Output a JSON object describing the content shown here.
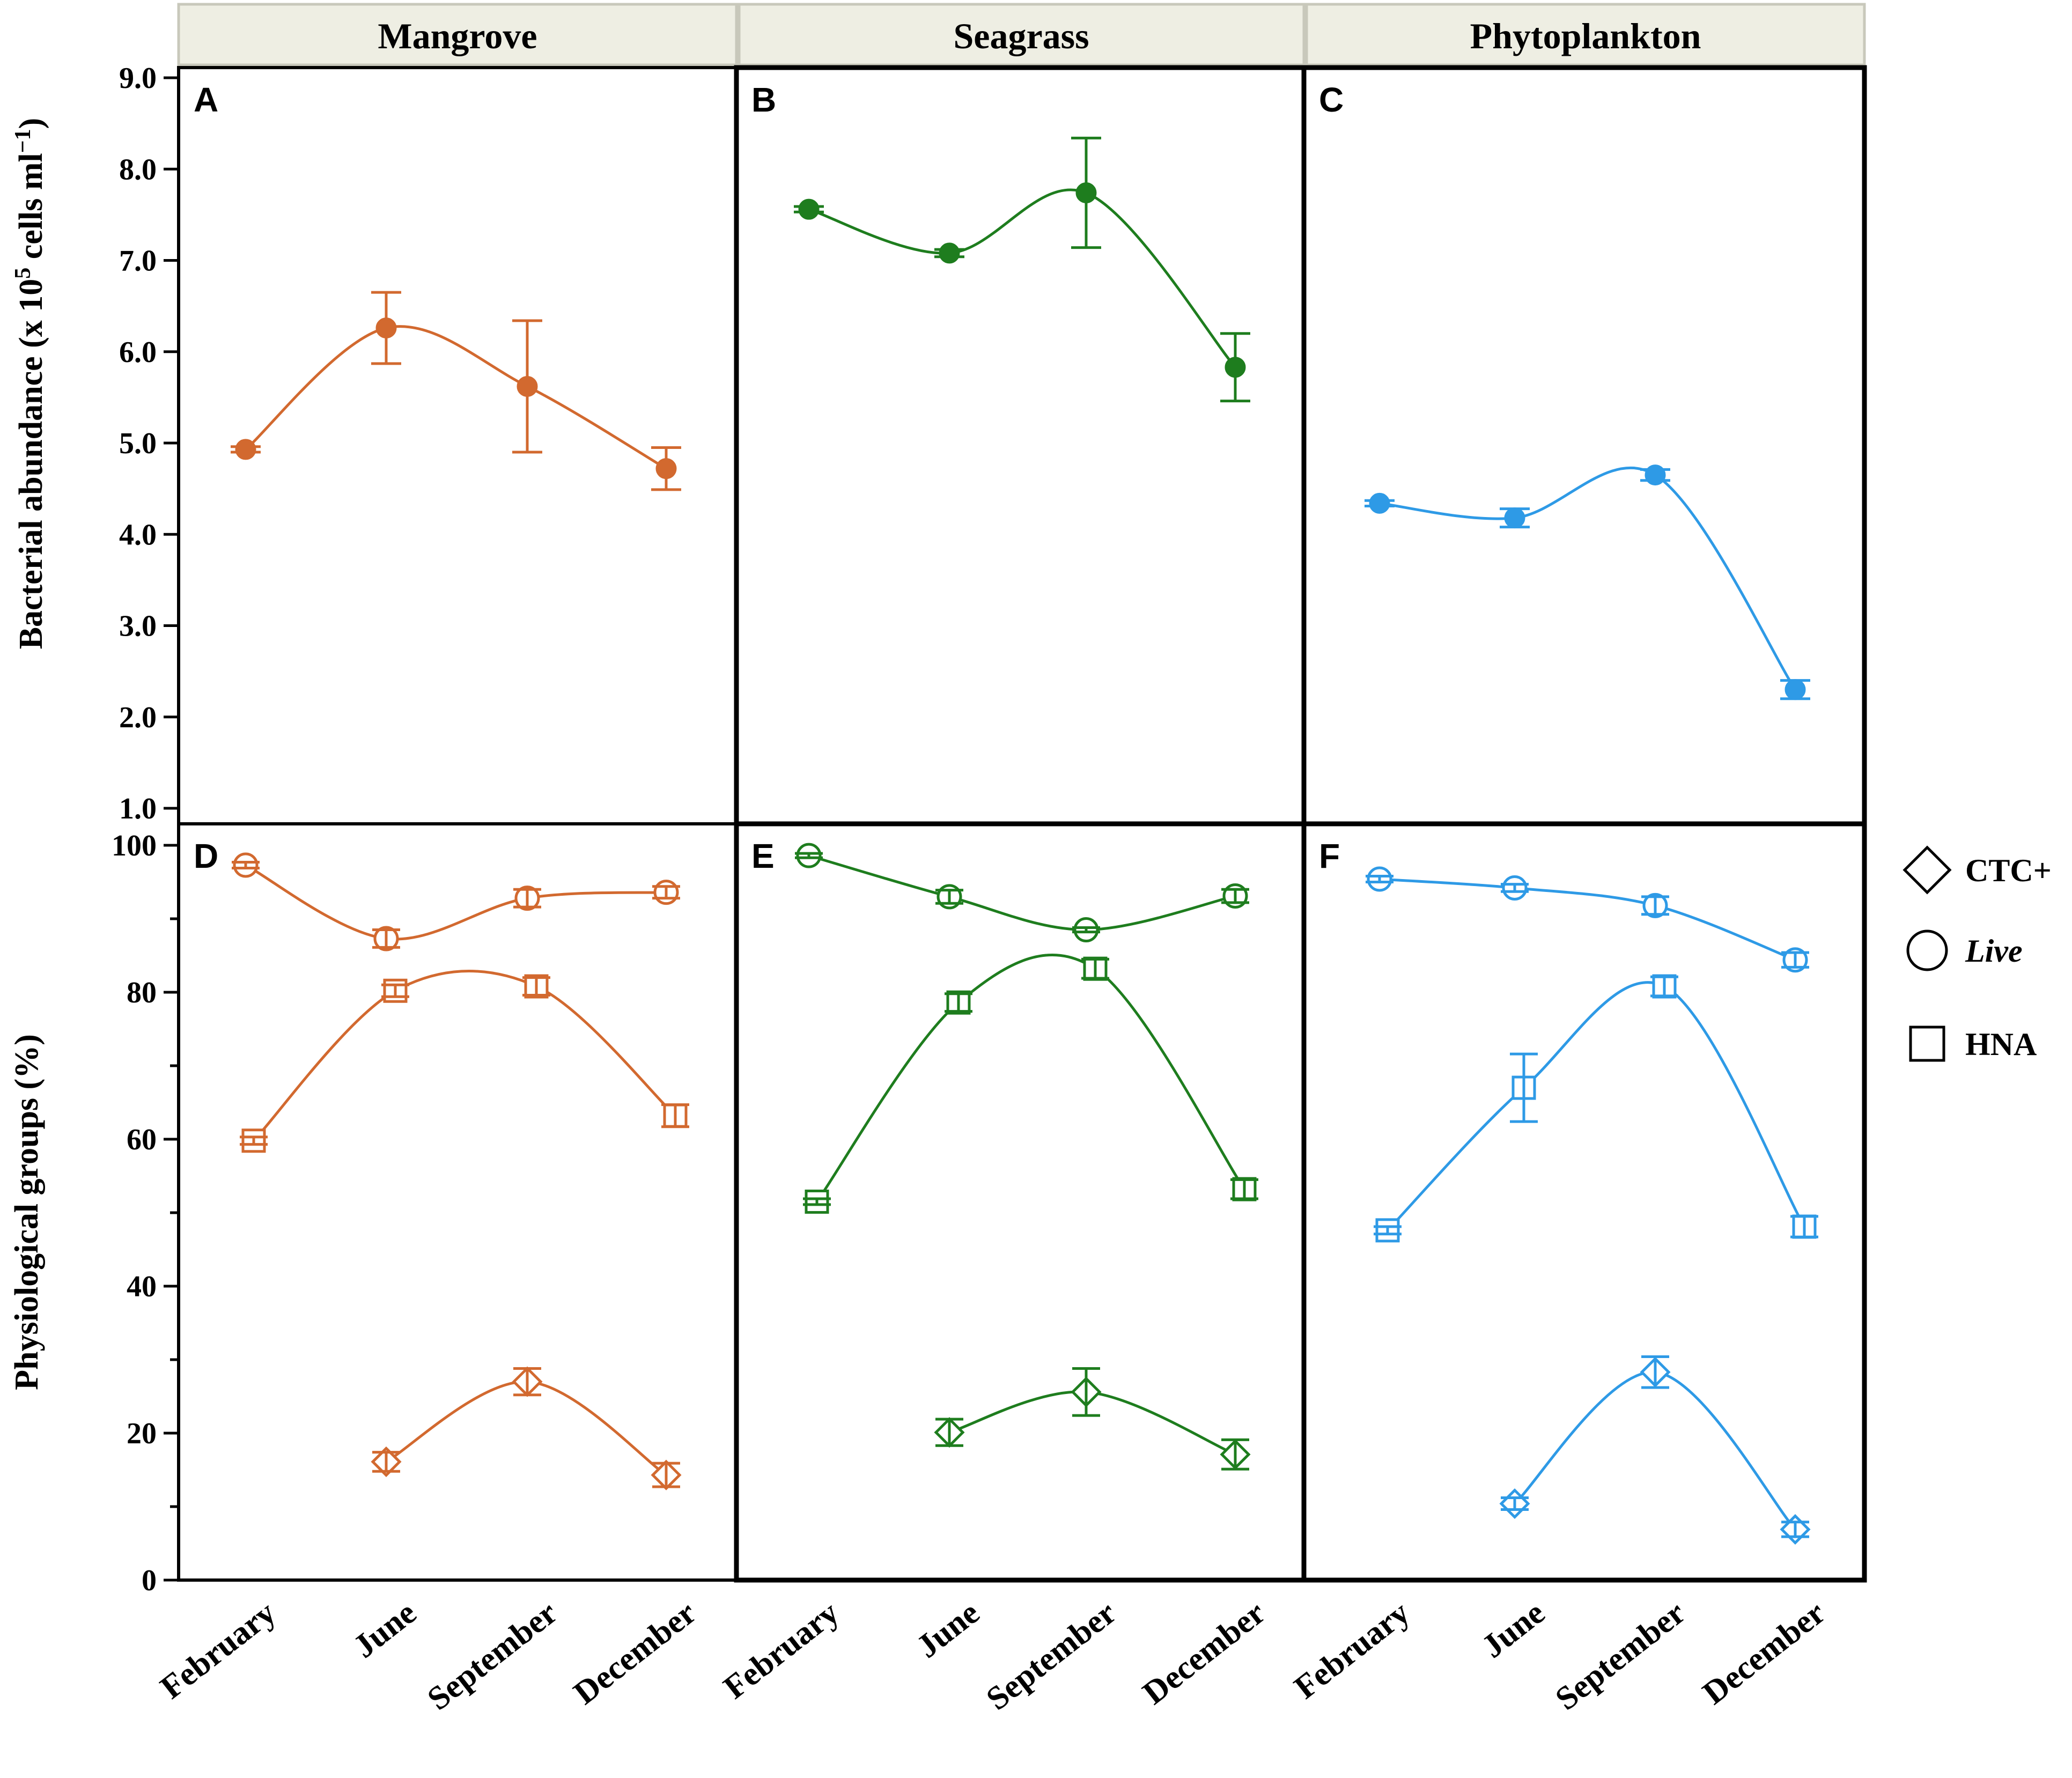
{
  "chart_data": {
    "type": "line",
    "months": [
      "February",
      "June",
      "September",
      "December"
    ],
    "colors": {
      "Mangrove": "#d2692f",
      "Seagrass": "#1e7d1e",
      "Phytoplankton": "#2e9ae6"
    },
    "strip_labels": [
      "Mangrove",
      "Seagrass",
      "Phytoplankton"
    ],
    "top_row": {
      "ylabel": "Bacterial abundance (x 10",
      "ylabel_sup5": "5",
      "ylabel_mid": " cells ml",
      "ylabel_sup": "−1",
      "ylabel_end": ")",
      "ylim": [
        1.0,
        9.0
      ],
      "yticks": [
        "1.0",
        "2.0",
        "3.0",
        "4.0",
        "5.0",
        "6.0",
        "7.0",
        "8.0",
        "9.0"
      ],
      "panels": [
        {
          "letter": "A",
          "habitat": "Mangrove",
          "values": [
            4.93,
            6.26,
            5.62,
            4.72
          ],
          "errors": [
            0.03,
            0.39,
            0.72,
            0.23
          ]
        },
        {
          "letter": "B",
          "habitat": "Seagrass",
          "values": [
            7.56,
            7.08,
            7.74,
            5.83
          ],
          "errors": [
            0.03,
            0.04,
            0.6,
            0.37
          ]
        },
        {
          "letter": "C",
          "habitat": "Phytoplankton",
          "values": [
            4.34,
            4.18,
            4.65,
            2.3
          ],
          "errors": [
            0.03,
            0.1,
            0.06,
            0.1
          ]
        }
      ]
    },
    "bottom_row": {
      "ylabel": "Physiological groups  (%)",
      "ylim": [
        0,
        100
      ],
      "yticks": [
        "0",
        "20",
        "40",
        "60",
        "80",
        "100"
      ],
      "panels": [
        {
          "letter": "D",
          "habitat": "Mangrove",
          "series": [
            {
              "name": "Live",
              "marker": "circle",
              "values": [
                97.3,
                87.3,
                92.8,
                93.6
              ],
              "errors": [
                0.4,
                1.2,
                1.2,
                0.8
              ]
            },
            {
              "name": "HNA",
              "marker": "square",
              "values": [
                59.8,
                80.2,
                80.8,
                63.2
              ],
              "errors": [
                0.5,
                0.8,
                1.2,
                1.5
              ]
            },
            {
              "name": "CTC+",
              "marker": "diamond",
              "values": [
                null,
                16.1,
                27.0,
                14.3
              ],
              "errors": [
                null,
                1.3,
                1.8,
                1.6
              ]
            }
          ]
        },
        {
          "letter": "E",
          "habitat": "Seagrass",
          "series": [
            {
              "name": "Live",
              "marker": "circle",
              "values": [
                98.6,
                93.0,
                88.5,
                93.1
              ],
              "errors": [
                0.3,
                0.9,
                0.3,
                0.9
              ]
            },
            {
              "name": "HNA",
              "marker": "square",
              "values": [
                51.5,
                78.6,
                83.2,
                53.2
              ],
              "errors": [
                0.4,
                1.2,
                1.3,
                1.3
              ]
            },
            {
              "name": "CTC+",
              "marker": "diamond",
              "values": [
                null,
                20.1,
                25.6,
                17.1
              ],
              "errors": [
                null,
                1.8,
                3.2,
                2.0
              ]
            }
          ]
        },
        {
          "letter": "F",
          "habitat": "Phytoplankton",
          "series": [
            {
              "name": "Live",
              "marker": "circle",
              "values": [
                95.4,
                94.2,
                91.8,
                84.4
              ],
              "errors": [
                0.4,
                0.5,
                1.2,
                1.0
              ]
            },
            {
              "name": "HNA",
              "marker": "square",
              "values": [
                47.6,
                67.0,
                80.8,
                48.1
              ],
              "errors": [
                0.5,
                4.6,
                1.3,
                1.4
              ]
            },
            {
              "name": "CTC+",
              "marker": "diamond",
              "values": [
                null,
                10.4,
                28.3,
                6.9
              ],
              "errors": [
                null,
                0.8,
                2.1,
                1.0
              ]
            }
          ]
        }
      ]
    },
    "legend": [
      {
        "marker": "diamond",
        "label": "CTC+"
      },
      {
        "marker": "circle",
        "label": "Live"
      },
      {
        "marker": "square",
        "label": "HNA"
      }
    ]
  }
}
